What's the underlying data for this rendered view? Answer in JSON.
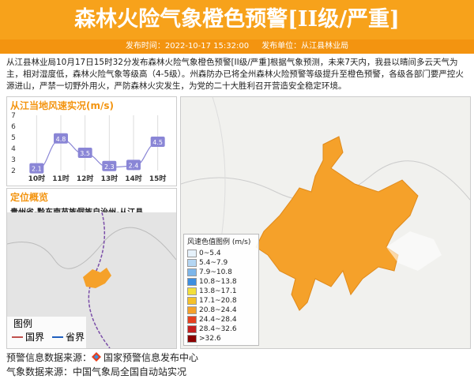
{
  "header": {
    "title": "森林火险气象橙色预警[II级/严重]",
    "publish_time": "发布时间：2022-10-17 15:32:00",
    "publisher": "发布单位：从江县林业局"
  },
  "body": {
    "text": "从江县林业局10月17日15时32分发布森林火险气象橙色预警[II级/严重]根据气象预测，未来7天内，我县以晴间多云天气为主，相对湿度低，森林火险气象等级高（4-5级）。州森防办已将全州森林火险预警等级提升至橙色预警，各级各部门要严控火源进山，严禁一切野外用火，严防森林火灾发生，为党的二十大胜利召开营造安全稳定环境。"
  },
  "wind_chart": {
    "type": "line",
    "title": "从江当地风速实况(m/s)",
    "categories": [
      "10时",
      "11时",
      "12时",
      "13时",
      "14时",
      "15时"
    ],
    "values": [
      2.1,
      4.8,
      3.5,
      2.3,
      2.4,
      4.5
    ],
    "color": "#8a86d6",
    "ylim": [
      2,
      7
    ],
    "yticks": [
      2,
      3,
      4,
      5,
      6,
      7
    ],
    "grid": true
  },
  "location": {
    "title": "定位概览",
    "region": "贵州省-黔东南苗族侗族自治州-从江县",
    "legend_title": "图例",
    "legend": [
      {
        "label": "国界",
        "color": "#c0504d"
      },
      {
        "label": "省界",
        "color": "#1f5fbf"
      }
    ]
  },
  "wind_legend": {
    "title": "风速色值图例 (m/s)",
    "items": [
      {
        "label": "0~5.4",
        "color": "#e6f2fb"
      },
      {
        "label": "5.4~7.9",
        "color": "#b4d6f3"
      },
      {
        "label": "7.9~10.8",
        "color": "#7db6ea"
      },
      {
        "label": "10.8~13.8",
        "color": "#3d8ee0"
      },
      {
        "label": "13.8~17.1",
        "color": "#f3df3b"
      },
      {
        "label": "17.1~20.8",
        "color": "#f5c12a"
      },
      {
        "label": "20.8~24.4",
        "color": "#f5a12a"
      },
      {
        "label": "24.4~28.4",
        "color": "#e5401f"
      },
      {
        "label": "28.4~32.6",
        "color": "#c41f1f"
      },
      {
        "label": ">32.6",
        "color": "#8b0000"
      }
    ]
  },
  "footer": {
    "source1": "预警信息数据来源：",
    "source1_org": "国家预警信息发布中心",
    "source2": "气象数据来源：中国气象局全国自动站实况"
  }
}
